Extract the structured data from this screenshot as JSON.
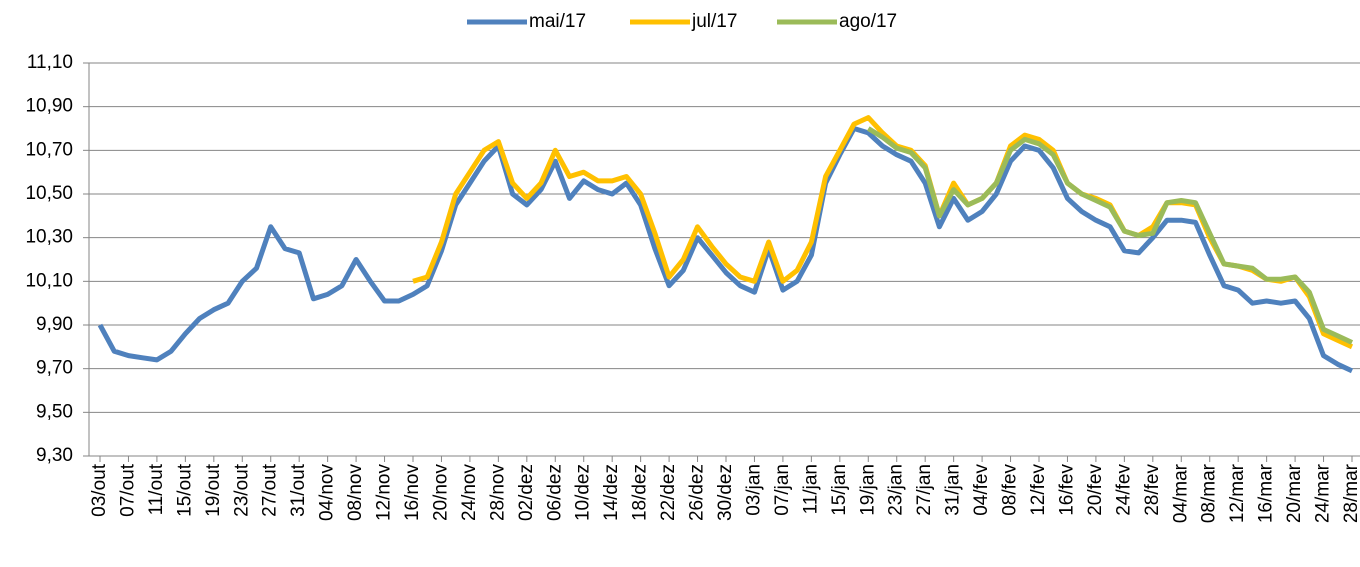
{
  "chart_data": {
    "type": "line",
    "categories": [
      "03/out",
      null,
      "07/out",
      null,
      "11/out",
      null,
      "15/out",
      null,
      "19/out",
      null,
      "23/out",
      null,
      "27/out",
      null,
      "31/out",
      null,
      "04/nov",
      null,
      "08/nov",
      null,
      "12/nov",
      null,
      "16/nov",
      null,
      "20/nov",
      null,
      "24/nov",
      null,
      "28/nov",
      null,
      "02/dez",
      null,
      "06/dez",
      null,
      "10/dez",
      null,
      "14/dez",
      null,
      "18/dez",
      null,
      "22/dez",
      null,
      "26/dez",
      null,
      "30/dez",
      null,
      "03/jan",
      null,
      "07/jan",
      null,
      "11/jan",
      null,
      "15/jan",
      null,
      "19/jan",
      null,
      "23/jan",
      null,
      "27/jan",
      null,
      "31/jan",
      null,
      "04/fev",
      null,
      "08/fev",
      null,
      "12/fev",
      null,
      "16/fev",
      null,
      "20/fev",
      null,
      "24/fev",
      null,
      "28/fev",
      null,
      "04/mar",
      null,
      "08/mar",
      null,
      "12/mar",
      null,
      "16/mar",
      null,
      "20/mar",
      null,
      "24/mar",
      null,
      "28/mar"
    ],
    "series": [
      {
        "name": "mai/17",
        "color": "#4f81bd",
        "values": [
          9.9,
          9.78,
          9.76,
          9.75,
          9.74,
          9.78,
          9.86,
          9.93,
          9.97,
          10.0,
          10.1,
          10.16,
          10.35,
          10.25,
          10.23,
          10.02,
          10.04,
          10.08,
          10.2,
          10.1,
          10.01,
          10.01,
          10.04,
          10.08,
          10.24,
          10.45,
          10.55,
          10.65,
          10.72,
          10.5,
          10.45,
          10.52,
          10.65,
          10.48,
          10.56,
          10.52,
          10.5,
          10.55,
          10.45,
          10.25,
          10.08,
          10.15,
          10.3,
          10.22,
          10.14,
          10.08,
          10.05,
          10.25,
          10.06,
          10.1,
          10.22,
          10.55,
          10.68,
          10.8,
          10.78,
          10.72,
          10.68,
          10.65,
          10.55,
          10.35,
          10.48,
          10.38,
          10.42,
          10.5,
          10.65,
          10.72,
          10.7,
          10.62,
          10.48,
          10.42,
          10.38,
          10.35,
          10.24,
          10.23,
          10.3,
          10.38,
          10.38,
          10.37,
          10.22,
          10.08,
          10.06,
          10.0,
          10.01,
          10.0,
          10.01,
          9.93,
          9.76,
          9.72,
          9.69
        ]
      },
      {
        "name": "jul/17",
        "color": "#ffc000",
        "values": [
          null,
          null,
          null,
          null,
          null,
          null,
          null,
          null,
          null,
          null,
          null,
          null,
          null,
          null,
          null,
          null,
          null,
          null,
          null,
          null,
          null,
          null,
          10.1,
          10.12,
          10.28,
          10.5,
          10.6,
          10.7,
          10.74,
          10.55,
          10.48,
          10.55,
          10.7,
          10.58,
          10.6,
          10.56,
          10.56,
          10.58,
          10.5,
          10.32,
          10.12,
          10.2,
          10.35,
          10.26,
          10.18,
          10.12,
          10.1,
          10.28,
          10.1,
          10.15,
          10.28,
          10.58,
          10.7,
          10.82,
          10.85,
          10.78,
          10.72,
          10.7,
          10.63,
          10.4,
          10.55,
          10.45,
          10.48,
          10.55,
          10.72,
          10.77,
          10.75,
          10.7,
          10.55,
          10.5,
          10.48,
          10.45,
          10.33,
          10.31,
          10.35,
          10.46,
          10.46,
          10.45,
          10.3,
          10.18,
          10.17,
          10.15,
          10.11,
          10.1,
          10.12,
          10.03,
          9.86,
          9.83,
          9.8
        ]
      },
      {
        "name": "ago/17",
        "color": "#9bbb59",
        "values": [
          null,
          null,
          null,
          null,
          null,
          null,
          null,
          null,
          null,
          null,
          null,
          null,
          null,
          null,
          null,
          null,
          null,
          null,
          null,
          null,
          null,
          null,
          null,
          null,
          null,
          null,
          null,
          null,
          null,
          null,
          null,
          null,
          null,
          null,
          null,
          null,
          null,
          null,
          null,
          null,
          null,
          null,
          null,
          null,
          null,
          null,
          null,
          null,
          null,
          null,
          null,
          null,
          null,
          null,
          10.8,
          10.76,
          10.71,
          10.69,
          10.62,
          10.4,
          10.52,
          10.45,
          10.48,
          10.55,
          10.7,
          10.75,
          10.73,
          10.68,
          10.55,
          10.5,
          10.47,
          10.44,
          10.33,
          10.31,
          10.32,
          10.46,
          10.47,
          10.46,
          10.32,
          10.18,
          10.17,
          10.16,
          10.11,
          10.11,
          10.12,
          10.05,
          9.88,
          9.85,
          9.82
        ]
      }
    ],
    "ylim": [
      9.3,
      11.1
    ],
    "yticks": [
      {
        "value": 9.3,
        "label": "9,30"
      },
      {
        "value": 9.5,
        "label": "9,50"
      },
      {
        "value": 9.7,
        "label": "9,70"
      },
      {
        "value": 9.9,
        "label": "9,90"
      },
      {
        "value": 10.1,
        "label": "10,10"
      },
      {
        "value": 10.3,
        "label": "10,30"
      },
      {
        "value": 10.5,
        "label": "10,50"
      },
      {
        "value": 10.7,
        "label": "10,70"
      },
      {
        "value": 10.9,
        "label": "10,90"
      },
      {
        "value": 11.1,
        "label": "11,10"
      }
    ],
    "grid": true,
    "legend": "top"
  }
}
